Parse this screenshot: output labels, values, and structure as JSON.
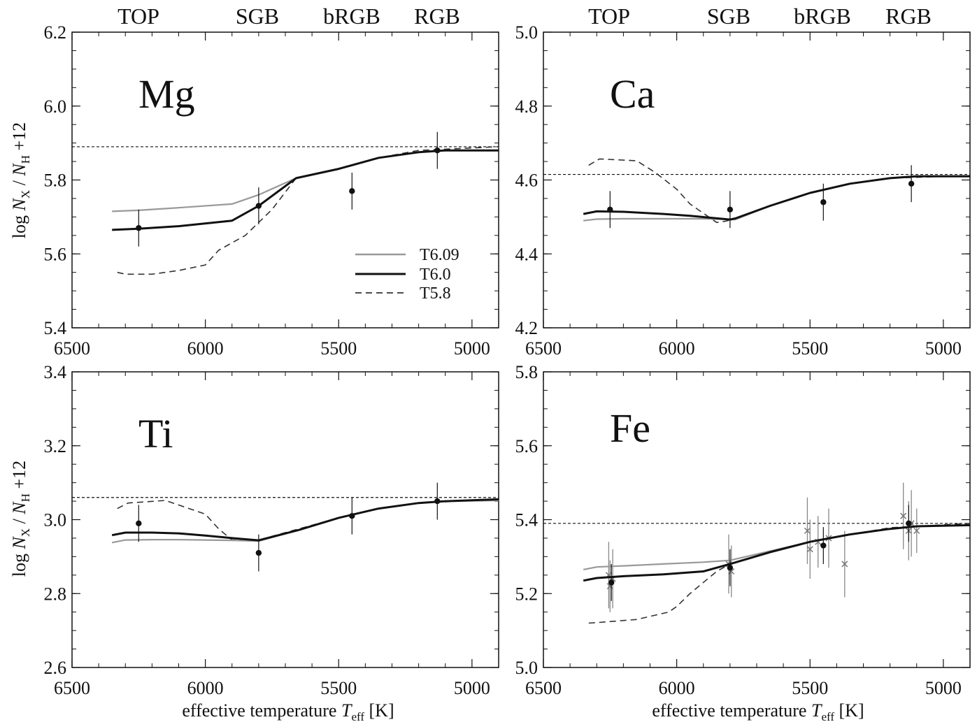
{
  "figure": {
    "phase_labels": [
      {
        "text": "TOP",
        "teff": 6250
      },
      {
        "text": "SGB",
        "teff": 5800
      },
      {
        "text": "bRGB",
        "teff": 5450
      },
      {
        "text": "RGB",
        "teff": 5100
      }
    ],
    "ylabel": "log N_X / N_H +12",
    "ylabel_parts": {
      "pre": "log ",
      "N": "N",
      "X": "X",
      "slash": " / ",
      "N2": "N",
      "H": "H",
      "post": " +12"
    },
    "xlabel": "effective temperature T_eff [K]",
    "xlabel_parts": {
      "pre": "effective temperature ",
      "T": "T",
      "eff": "eff",
      "post": "  [K]"
    },
    "legend": [
      {
        "label": "T6.09",
        "style": "solid",
        "color": "#999999",
        "text_color": "#888888"
      },
      {
        "label": "T6.0",
        "style": "solid",
        "color": "#111111",
        "text_color": "#111111"
      },
      {
        "label": "T5.8",
        "style": "dashed",
        "color": "#333333",
        "text_color": "#666666"
      }
    ]
  },
  "chart_data": [
    {
      "type": "line",
      "element": "Mg",
      "xlim": [
        6500,
        4900
      ],
      "ylim": [
        5.4,
        6.2
      ],
      "xticks": [
        6500,
        6000,
        5500,
        5000
      ],
      "yticks": [
        5.4,
        5.6,
        5.8,
        6.0,
        6.2
      ],
      "ytick_labels": [
        "5.4",
        "5.6",
        "5.8",
        "6.0",
        "6.2"
      ],
      "reference_line": 5.89,
      "series": [
        {
          "name": "T6.09",
          "color": "#999999",
          "style": "solid",
          "x": [
            6350,
            6250,
            6100,
            5900,
            5800,
            5660,
            5500,
            5350,
            5200,
            5100,
            4900
          ],
          "y": [
            5.715,
            5.718,
            5.725,
            5.735,
            5.76,
            5.805,
            5.83,
            5.86,
            5.875,
            5.88,
            5.88
          ]
        },
        {
          "name": "T6.0",
          "color": "#111111",
          "style": "solid",
          "x": [
            6350,
            6250,
            6100,
            5900,
            5800,
            5660,
            5500,
            5350,
            5200,
            5100,
            4900
          ],
          "y": [
            5.665,
            5.668,
            5.675,
            5.69,
            5.73,
            5.805,
            5.83,
            5.86,
            5.875,
            5.88,
            5.88
          ]
        },
        {
          "name": "T5.8",
          "color": "#333333",
          "style": "dashed",
          "x": [
            6330,
            6300,
            6200,
            6100,
            6000,
            5950,
            5850,
            5750,
            5660,
            5500,
            5350,
            5200,
            4900
          ],
          "y": [
            5.55,
            5.545,
            5.545,
            5.555,
            5.57,
            5.61,
            5.65,
            5.72,
            5.805,
            5.83,
            5.86,
            5.88,
            5.89
          ]
        }
      ],
      "observations": [
        {
          "x": 6250,
          "y": 5.67,
          "err": 0.05
        },
        {
          "x": 5800,
          "y": 5.73,
          "err": 0.05
        },
        {
          "x": 5450,
          "y": 5.77,
          "err": 0.05
        },
        {
          "x": 5130,
          "y": 5.88,
          "err": 0.05
        }
      ]
    },
    {
      "type": "line",
      "element": "Ca",
      "xlim": [
        6500,
        4900
      ],
      "ylim": [
        4.2,
        5.0
      ],
      "xticks": [
        6500,
        6000,
        5500,
        5000
      ],
      "yticks": [
        4.2,
        4.4,
        4.6,
        4.8,
        5.0
      ],
      "ytick_labels": [
        "4.2",
        "4.4",
        "4.6",
        "4.8",
        "5.0"
      ],
      "reference_line": 4.615,
      "series": [
        {
          "name": "T6.09",
          "color": "#999999",
          "style": "solid",
          "x": [
            6350,
            6300,
            6200,
            6050,
            5900,
            5780,
            5650,
            5500,
            5350,
            5200,
            5100,
            4900
          ],
          "y": [
            4.49,
            4.494,
            4.495,
            4.495,
            4.495,
            4.493,
            4.53,
            4.565,
            4.59,
            4.605,
            4.61,
            4.61
          ]
        },
        {
          "name": "T6.0",
          "color": "#111111",
          "style": "solid",
          "x": [
            6350,
            6300,
            6200,
            6050,
            5950,
            5860,
            5800,
            5780,
            5650,
            5500,
            5350,
            5200,
            5100,
            4900
          ],
          "y": [
            4.508,
            4.515,
            4.514,
            4.508,
            4.503,
            4.497,
            4.493,
            4.496,
            4.53,
            4.565,
            4.59,
            4.605,
            4.61,
            4.61
          ]
        },
        {
          "name": "T5.8",
          "color": "#333333",
          "style": "dashed",
          "x": [
            6330,
            6290,
            6150,
            6080,
            6000,
            5950,
            5850,
            5820,
            5780,
            5650,
            5500,
            5350,
            5200,
            4900
          ],
          "y": [
            4.64,
            4.657,
            4.652,
            4.62,
            4.575,
            4.535,
            4.485,
            4.488,
            4.495,
            4.53,
            4.565,
            4.59,
            4.605,
            4.612
          ]
        }
      ],
      "observations": [
        {
          "x": 6250,
          "y": 4.52,
          "err": 0.05
        },
        {
          "x": 5800,
          "y": 4.52,
          "err": 0.05
        },
        {
          "x": 5450,
          "y": 4.54,
          "err": 0.05
        },
        {
          "x": 5120,
          "y": 4.59,
          "err": 0.05
        }
      ]
    },
    {
      "type": "line",
      "element": "Ti",
      "xlim": [
        6500,
        4900
      ],
      "ylim": [
        2.6,
        3.4
      ],
      "xticks": [
        6500,
        6000,
        5500,
        5000
      ],
      "yticks": [
        2.6,
        2.8,
        3.0,
        3.2,
        3.4
      ],
      "ytick_labels": [
        "2.6",
        "2.8",
        "3.0",
        "3.2",
        "3.4"
      ],
      "reference_line": 3.06,
      "series": [
        {
          "name": "T6.09",
          "color": "#999999",
          "style": "solid",
          "x": [
            6350,
            6300,
            6200,
            6100,
            6000,
            5900,
            5800,
            5650,
            5500,
            5350,
            5200,
            5100,
            4900
          ],
          "y": [
            2.938,
            2.945,
            2.946,
            2.946,
            2.945,
            2.944,
            2.942,
            2.972,
            3.005,
            3.03,
            3.045,
            3.05,
            3.052
          ]
        },
        {
          "name": "T6.0",
          "color": "#111111",
          "style": "solid",
          "x": [
            6350,
            6300,
            6200,
            6100,
            6000,
            5900,
            5800,
            5650,
            5500,
            5350,
            5200,
            5100,
            4900
          ],
          "y": [
            2.958,
            2.965,
            2.965,
            2.963,
            2.957,
            2.95,
            2.944,
            2.972,
            3.005,
            3.03,
            3.045,
            3.05,
            3.055
          ]
        },
        {
          "name": "T5.8",
          "color": "#333333",
          "style": "dashed",
          "x": [
            6330,
            6290,
            6150,
            6000,
            5950,
            5900,
            5800,
            5650,
            5500,
            5350,
            5200,
            4900
          ],
          "y": [
            3.03,
            3.045,
            3.052,
            3.015,
            2.975,
            2.945,
            2.945,
            2.975,
            3.005,
            3.03,
            3.045,
            3.055
          ]
        }
      ],
      "observations": [
        {
          "x": 6250,
          "y": 2.99,
          "err": 0.05
        },
        {
          "x": 5800,
          "y": 2.91,
          "err": 0.05
        },
        {
          "x": 5450,
          "y": 3.01,
          "err": 0.05
        },
        {
          "x": 5130,
          "y": 3.05,
          "err": 0.05
        }
      ]
    },
    {
      "type": "line",
      "element": "Fe",
      "xlim": [
        6500,
        4900
      ],
      "ylim": [
        5.0,
        5.8
      ],
      "xticks": [
        6500,
        6000,
        5500,
        5000
      ],
      "yticks": [
        5.0,
        5.2,
        5.4,
        5.6,
        5.8
      ],
      "ytick_labels": [
        "5.0",
        "5.2",
        "5.4",
        "5.6",
        "5.8"
      ],
      "reference_line": 5.39,
      "series": [
        {
          "name": "T6.09",
          "color": "#999999",
          "style": "solid",
          "x": [
            6350,
            6300,
            6200,
            6050,
            5900,
            5800,
            5650,
            5500,
            5350,
            5200,
            5100,
            4900
          ],
          "y": [
            5.265,
            5.272,
            5.275,
            5.28,
            5.285,
            5.29,
            5.315,
            5.34,
            5.36,
            5.375,
            5.382,
            5.385
          ]
        },
        {
          "name": "T6.0",
          "color": "#111111",
          "style": "solid",
          "x": [
            6350,
            6300,
            6200,
            6050,
            5900,
            5800,
            5650,
            5500,
            5350,
            5200,
            5100,
            4900
          ],
          "y": [
            5.235,
            5.242,
            5.247,
            5.252,
            5.26,
            5.28,
            5.312,
            5.34,
            5.36,
            5.375,
            5.382,
            5.385
          ]
        },
        {
          "name": "T5.8",
          "color": "#333333",
          "style": "dashed",
          "x": [
            6330,
            6290,
            6150,
            6030,
            6000,
            5950,
            5850,
            5800,
            5650,
            5500,
            5350,
            5200,
            4900
          ],
          "y": [
            5.12,
            5.122,
            5.13,
            5.15,
            5.165,
            5.2,
            5.26,
            5.28,
            5.312,
            5.34,
            5.36,
            5.378,
            5.39
          ]
        }
      ],
      "observations": [
        {
          "x": 6245,
          "y": 5.23,
          "err": 0.05
        },
        {
          "x": 5800,
          "y": 5.27,
          "err": 0.05
        },
        {
          "x": 5450,
          "y": 5.33,
          "err": 0.05
        },
        {
          "x": 5130,
          "y": 5.39,
          "err": 0.05
        }
      ],
      "individual_stars": [
        {
          "x": 6255,
          "y": 5.25,
          "err": 0.09
        },
        {
          "x": 6250,
          "y": 5.22,
          "err": 0.07
        },
        {
          "x": 6240,
          "y": 5.24,
          "err": 0.08
        },
        {
          "x": 5805,
          "y": 5.28,
          "err": 0.08
        },
        {
          "x": 5795,
          "y": 5.26,
          "err": 0.07
        },
        {
          "x": 5510,
          "y": 5.37,
          "err": 0.09
        },
        {
          "x": 5500,
          "y": 5.32,
          "err": 0.08
        },
        {
          "x": 5470,
          "y": 5.34,
          "err": 0.07
        },
        {
          "x": 5430,
          "y": 5.35,
          "err": 0.08
        },
        {
          "x": 5370,
          "y": 5.28,
          "err": 0.09
        },
        {
          "x": 5150,
          "y": 5.41,
          "err": 0.09
        },
        {
          "x": 5130,
          "y": 5.37,
          "err": 0.08
        },
        {
          "x": 5120,
          "y": 5.39,
          "err": 0.09
        },
        {
          "x": 5100,
          "y": 5.37,
          "err": 0.06
        }
      ]
    }
  ]
}
